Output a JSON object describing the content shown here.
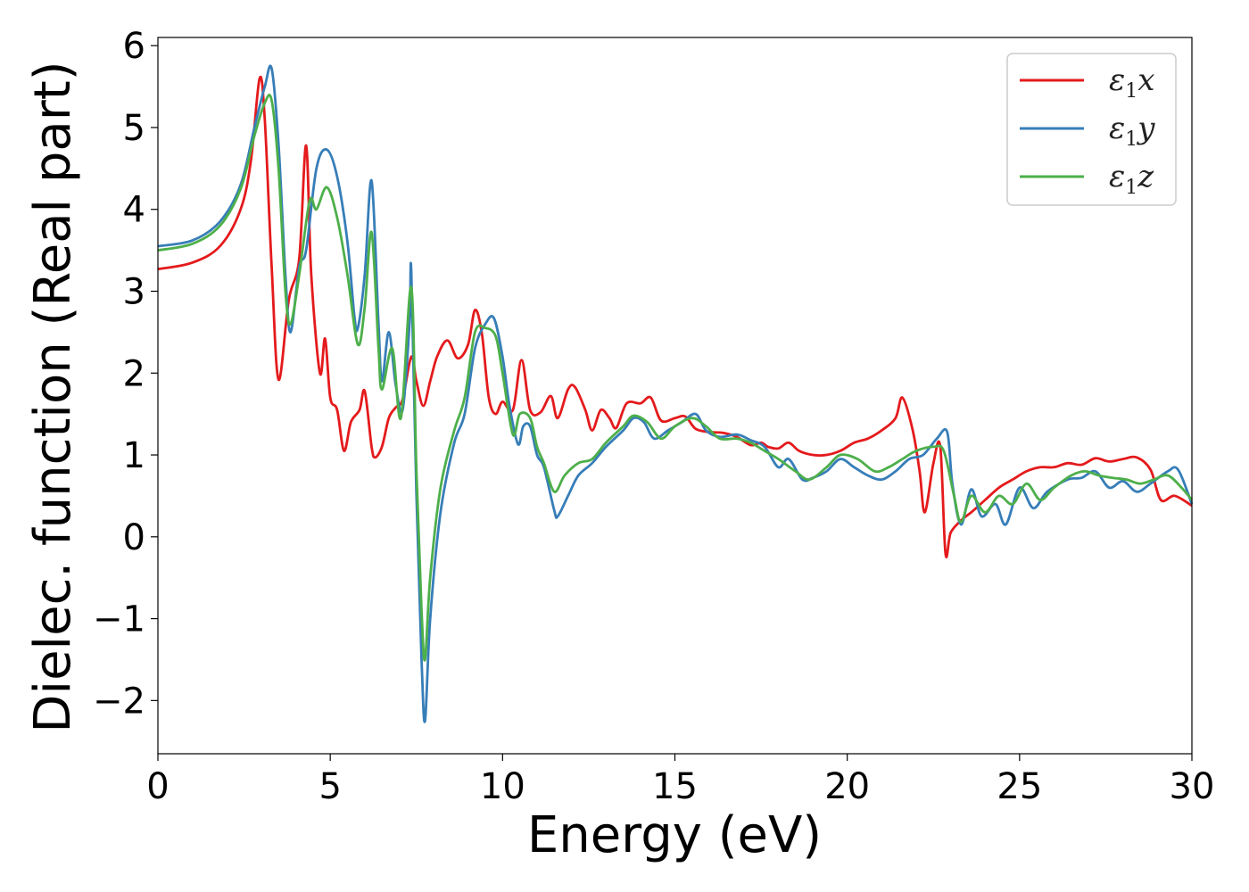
{
  "chart_data": {
    "type": "line",
    "title": "",
    "xlabel": "Energy (eV)",
    "ylabel": "Dielec. function (Real part)",
    "xlim": [
      0,
      30
    ],
    "ylim": [
      -2.65,
      6.1
    ],
    "xticks": [
      0,
      5,
      10,
      15,
      20,
      25,
      30
    ],
    "yticks": [
      -2,
      -1,
      0,
      1,
      2,
      3,
      4,
      5,
      6
    ],
    "xtick_labels": [
      "0",
      "5",
      "10",
      "15",
      "20",
      "25",
      "30"
    ],
    "ytick_labels": [
      "−2",
      "−1",
      "0",
      "1",
      "2",
      "3",
      "4",
      "5",
      "6"
    ],
    "grid": false,
    "legend_position": "top-right",
    "series": [
      {
        "name": "ε1x",
        "label_base": "ε",
        "label_sub": "1",
        "label_var": "x",
        "color": "#e41a1c",
        "points": [
          [
            0,
            3.27
          ],
          [
            1,
            3.35
          ],
          [
            1.8,
            3.55
          ],
          [
            2.4,
            4.0
          ],
          [
            2.7,
            4.6
          ],
          [
            2.95,
            5.6
          ],
          [
            3.1,
            5.1
          ],
          [
            3.3,
            3.3
          ],
          [
            3.5,
            1.92
          ],
          [
            3.8,
            2.9
          ],
          [
            4.1,
            3.4
          ],
          [
            4.3,
            4.78
          ],
          [
            4.45,
            3.2
          ],
          [
            4.7,
            2.0
          ],
          [
            4.85,
            2.42
          ],
          [
            5.0,
            1.7
          ],
          [
            5.2,
            1.55
          ],
          [
            5.4,
            1.05
          ],
          [
            5.6,
            1.4
          ],
          [
            5.85,
            1.55
          ],
          [
            6.0,
            1.78
          ],
          [
            6.2,
            1.1
          ],
          [
            6.3,
            0.97
          ],
          [
            6.5,
            1.1
          ],
          [
            6.7,
            1.45
          ],
          [
            6.9,
            1.58
          ],
          [
            7.1,
            1.68
          ],
          [
            7.35,
            2.2
          ],
          [
            7.5,
            1.9
          ],
          [
            7.7,
            1.6
          ],
          [
            7.9,
            1.9
          ],
          [
            8.1,
            2.2
          ],
          [
            8.4,
            2.4
          ],
          [
            8.7,
            2.18
          ],
          [
            9.0,
            2.35
          ],
          [
            9.2,
            2.77
          ],
          [
            9.4,
            2.48
          ],
          [
            9.6,
            1.7
          ],
          [
            9.8,
            1.5
          ],
          [
            10.0,
            1.65
          ],
          [
            10.3,
            1.55
          ],
          [
            10.55,
            2.16
          ],
          [
            10.8,
            1.55
          ],
          [
            11.1,
            1.52
          ],
          [
            11.4,
            1.72
          ],
          [
            11.6,
            1.45
          ],
          [
            11.9,
            1.8
          ],
          [
            12.1,
            1.83
          ],
          [
            12.4,
            1.55
          ],
          [
            12.6,
            1.3
          ],
          [
            12.85,
            1.55
          ],
          [
            13.1,
            1.45
          ],
          [
            13.3,
            1.33
          ],
          [
            13.6,
            1.63
          ],
          [
            14.0,
            1.63
          ],
          [
            14.3,
            1.7
          ],
          [
            14.6,
            1.42
          ],
          [
            15.0,
            1.45
          ],
          [
            15.3,
            1.47
          ],
          [
            15.6,
            1.32
          ],
          [
            16.0,
            1.28
          ],
          [
            16.4,
            1.27
          ],
          [
            16.8,
            1.22
          ],
          [
            17.2,
            1.12
          ],
          [
            17.5,
            1.15
          ],
          [
            17.7,
            1.1
          ],
          [
            18.0,
            1.08
          ],
          [
            18.3,
            1.15
          ],
          [
            18.6,
            1.05
          ],
          [
            19.0,
            1.0
          ],
          [
            19.4,
            1.0
          ],
          [
            19.8,
            1.05
          ],
          [
            20.2,
            1.15
          ],
          [
            20.6,
            1.2
          ],
          [
            21.0,
            1.3
          ],
          [
            21.4,
            1.45
          ],
          [
            21.6,
            1.7
          ],
          [
            21.9,
            1.3
          ],
          [
            22.1,
            0.8
          ],
          [
            22.25,
            0.3
          ],
          [
            22.5,
            0.9
          ],
          [
            22.7,
            1.1
          ],
          [
            22.85,
            -0.2
          ],
          [
            23.0,
            0.05
          ],
          [
            23.3,
            0.2
          ],
          [
            23.6,
            0.3
          ],
          [
            24.0,
            0.45
          ],
          [
            24.4,
            0.6
          ],
          [
            24.8,
            0.7
          ],
          [
            25.2,
            0.8
          ],
          [
            25.6,
            0.85
          ],
          [
            26.0,
            0.85
          ],
          [
            26.4,
            0.9
          ],
          [
            26.8,
            0.88
          ],
          [
            27.2,
            0.96
          ],
          [
            27.6,
            0.92
          ],
          [
            28.0,
            0.95
          ],
          [
            28.4,
            0.97
          ],
          [
            28.8,
            0.82
          ],
          [
            29.1,
            0.45
          ],
          [
            29.5,
            0.5
          ],
          [
            30,
            0.38
          ]
        ]
      },
      {
        "name": "ε1y",
        "label_base": "ε",
        "label_sub": "1",
        "label_var": "y",
        "color": "#377eb8",
        "points": [
          [
            0,
            3.55
          ],
          [
            1,
            3.62
          ],
          [
            1.8,
            3.85
          ],
          [
            2.4,
            4.3
          ],
          [
            2.8,
            5.0
          ],
          [
            3.1,
            5.5
          ],
          [
            3.3,
            5.72
          ],
          [
            3.5,
            4.8
          ],
          [
            3.7,
            3.2
          ],
          [
            3.85,
            2.5
          ],
          [
            4.1,
            3.3
          ],
          [
            4.3,
            3.5
          ],
          [
            4.6,
            4.5
          ],
          [
            4.9,
            4.73
          ],
          [
            5.2,
            4.4
          ],
          [
            5.5,
            3.6
          ],
          [
            5.7,
            2.7
          ],
          [
            5.8,
            2.55
          ],
          [
            6.0,
            3.2
          ],
          [
            6.2,
            4.35
          ],
          [
            6.4,
            2.6
          ],
          [
            6.5,
            1.9
          ],
          [
            6.7,
            2.5
          ],
          [
            6.9,
            1.85
          ],
          [
            7.1,
            1.55
          ],
          [
            7.3,
            2.6
          ],
          [
            7.35,
            3.25
          ],
          [
            7.5,
            0.5
          ],
          [
            7.65,
            -1.5
          ],
          [
            7.75,
            -2.25
          ],
          [
            7.9,
            -1.0
          ],
          [
            8.2,
            0.3
          ],
          [
            8.6,
            1.15
          ],
          [
            8.9,
            1.5
          ],
          [
            9.2,
            2.3
          ],
          [
            9.5,
            2.6
          ],
          [
            9.75,
            2.67
          ],
          [
            10.0,
            2.2
          ],
          [
            10.2,
            1.6
          ],
          [
            10.45,
            1.13
          ],
          [
            10.6,
            1.35
          ],
          [
            10.8,
            1.35
          ],
          [
            11.0,
            1.0
          ],
          [
            11.2,
            0.85
          ],
          [
            11.5,
            0.32
          ],
          [
            11.6,
            0.25
          ],
          [
            11.9,
            0.5
          ],
          [
            12.2,
            0.75
          ],
          [
            12.6,
            0.9
          ],
          [
            13.0,
            1.1
          ],
          [
            13.5,
            1.3
          ],
          [
            13.8,
            1.45
          ],
          [
            14.1,
            1.4
          ],
          [
            14.4,
            1.2
          ],
          [
            14.8,
            1.3
          ],
          [
            15.2,
            1.4
          ],
          [
            15.6,
            1.5
          ],
          [
            15.9,
            1.3
          ],
          [
            16.3,
            1.22
          ],
          [
            16.8,
            1.25
          ],
          [
            17.2,
            1.18
          ],
          [
            17.6,
            1.1
          ],
          [
            18.0,
            0.85
          ],
          [
            18.3,
            0.95
          ],
          [
            18.7,
            0.7
          ],
          [
            19.0,
            0.72
          ],
          [
            19.4,
            0.8
          ],
          [
            19.8,
            0.95
          ],
          [
            20.2,
            0.85
          ],
          [
            20.6,
            0.75
          ],
          [
            21.0,
            0.7
          ],
          [
            21.4,
            0.8
          ],
          [
            21.8,
            0.95
          ],
          [
            22.2,
            1.0
          ],
          [
            22.6,
            1.2
          ],
          [
            22.9,
            1.28
          ],
          [
            23.05,
            0.65
          ],
          [
            23.3,
            0.15
          ],
          [
            23.6,
            0.58
          ],
          [
            23.9,
            0.25
          ],
          [
            24.3,
            0.4
          ],
          [
            24.6,
            0.15
          ],
          [
            25.0,
            0.6
          ],
          [
            25.4,
            0.35
          ],
          [
            25.8,
            0.55
          ],
          [
            26.4,
            0.7
          ],
          [
            26.8,
            0.72
          ],
          [
            27.2,
            0.8
          ],
          [
            27.6,
            0.6
          ],
          [
            28.0,
            0.68
          ],
          [
            28.4,
            0.55
          ],
          [
            28.8,
            0.65
          ],
          [
            29.3,
            0.8
          ],
          [
            29.6,
            0.82
          ],
          [
            30,
            0.4
          ]
        ]
      },
      {
        "name": "ε1z",
        "label_base": "ε",
        "label_sub": "1",
        "label_var": "z",
        "color": "#4daf4a",
        "points": [
          [
            0,
            3.5
          ],
          [
            1,
            3.58
          ],
          [
            1.8,
            3.8
          ],
          [
            2.4,
            4.25
          ],
          [
            2.8,
            4.9
          ],
          [
            3.1,
            5.3
          ],
          [
            3.3,
            5.33
          ],
          [
            3.5,
            4.5
          ],
          [
            3.7,
            3.0
          ],
          [
            3.85,
            2.6
          ],
          [
            4.1,
            3.2
          ],
          [
            4.4,
            4.1
          ],
          [
            4.6,
            4.0
          ],
          [
            4.9,
            4.27
          ],
          [
            5.2,
            3.9
          ],
          [
            5.5,
            3.2
          ],
          [
            5.8,
            2.35
          ],
          [
            6.0,
            2.8
          ],
          [
            6.2,
            3.72
          ],
          [
            6.4,
            2.3
          ],
          [
            6.5,
            1.8
          ],
          [
            6.8,
            2.3
          ],
          [
            7.05,
            1.45
          ],
          [
            7.35,
            3.05
          ],
          [
            7.5,
            0.8
          ],
          [
            7.65,
            -0.9
          ],
          [
            7.75,
            -1.5
          ],
          [
            7.9,
            -0.5
          ],
          [
            8.2,
            0.6
          ],
          [
            8.6,
            1.3
          ],
          [
            8.9,
            1.7
          ],
          [
            9.2,
            2.5
          ],
          [
            9.5,
            2.55
          ],
          [
            9.8,
            2.45
          ],
          [
            10.0,
            2.0
          ],
          [
            10.3,
            1.25
          ],
          [
            10.5,
            1.5
          ],
          [
            10.8,
            1.45
          ],
          [
            11.0,
            1.1
          ],
          [
            11.2,
            0.9
          ],
          [
            11.5,
            0.55
          ],
          [
            11.8,
            0.75
          ],
          [
            12.2,
            0.9
          ],
          [
            12.6,
            0.95
          ],
          [
            13.0,
            1.15
          ],
          [
            13.5,
            1.35
          ],
          [
            13.8,
            1.48
          ],
          [
            14.2,
            1.4
          ],
          [
            14.6,
            1.2
          ],
          [
            15.0,
            1.35
          ],
          [
            15.5,
            1.45
          ],
          [
            15.9,
            1.35
          ],
          [
            16.3,
            1.2
          ],
          [
            16.8,
            1.2
          ],
          [
            17.2,
            1.15
          ],
          [
            17.6,
            1.05
          ],
          [
            18.0,
            0.95
          ],
          [
            18.5,
            0.8
          ],
          [
            18.9,
            0.7
          ],
          [
            19.4,
            0.85
          ],
          [
            19.8,
            1.0
          ],
          [
            20.3,
            0.95
          ],
          [
            20.8,
            0.8
          ],
          [
            21.2,
            0.85
          ],
          [
            21.6,
            0.95
          ],
          [
            22.0,
            1.05
          ],
          [
            22.5,
            1.1
          ],
          [
            22.8,
            1.05
          ],
          [
            23.1,
            0.5
          ],
          [
            23.3,
            0.18
          ],
          [
            23.6,
            0.5
          ],
          [
            24.0,
            0.3
          ],
          [
            24.4,
            0.5
          ],
          [
            24.8,
            0.4
          ],
          [
            25.2,
            0.65
          ],
          [
            25.6,
            0.45
          ],
          [
            26.0,
            0.6
          ],
          [
            26.5,
            0.75
          ],
          [
            26.9,
            0.8
          ],
          [
            27.3,
            0.75
          ],
          [
            27.7,
            0.72
          ],
          [
            28.1,
            0.7
          ],
          [
            28.5,
            0.65
          ],
          [
            28.9,
            0.7
          ],
          [
            29.3,
            0.75
          ],
          [
            29.7,
            0.6
          ],
          [
            30,
            0.45
          ]
        ]
      }
    ]
  }
}
